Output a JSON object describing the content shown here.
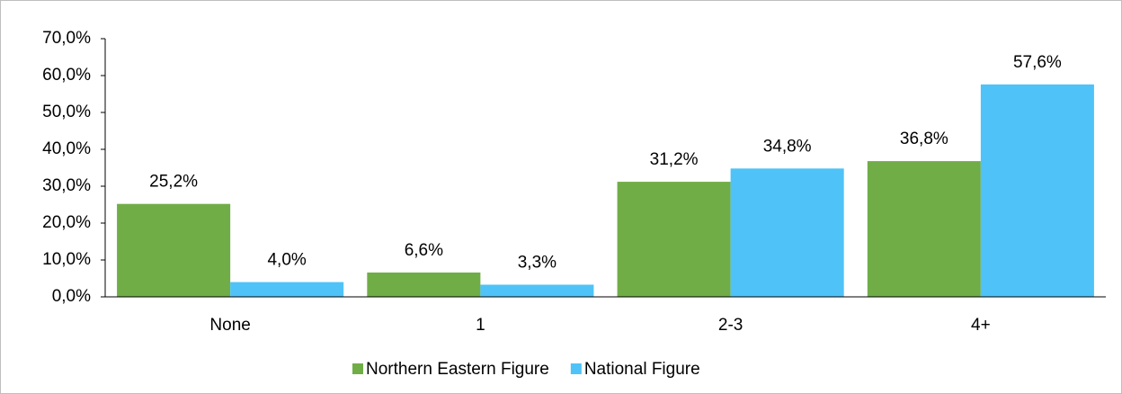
{
  "chart_data": {
    "type": "bar",
    "categories": [
      "None",
      "1",
      "2-3",
      "4+"
    ],
    "series": [
      {
        "name": "Northern Eastern Figure",
        "color": "#70ad47",
        "values": [
          25.2,
          6.6,
          31.2,
          36.8
        ],
        "value_labels": [
          "25,2%",
          "6,6%",
          "31,2%",
          "36,8%"
        ]
      },
      {
        "name": "National Figure",
        "color": "#4fc3f7",
        "values": [
          4.0,
          3.3,
          34.8,
          57.6
        ],
        "value_labels": [
          "4,0%",
          "3,3%",
          "34,8%",
          "57,6%"
        ]
      }
    ],
    "ylim": [
      0,
      70
    ],
    "yticks": [
      {
        "value": 0,
        "label": "0,0%"
      },
      {
        "value": 10,
        "label": "10,0%"
      },
      {
        "value": 20,
        "label": "20,0%"
      },
      {
        "value": 30,
        "label": "30,0%"
      },
      {
        "value": 40,
        "label": "40,0%"
      },
      {
        "value": 50,
        "label": "50,0%"
      },
      {
        "value": 60,
        "label": "60,0%"
      },
      {
        "value": 70,
        "label": "70,0%"
      }
    ],
    "grid": false,
    "legend": "bottom"
  }
}
